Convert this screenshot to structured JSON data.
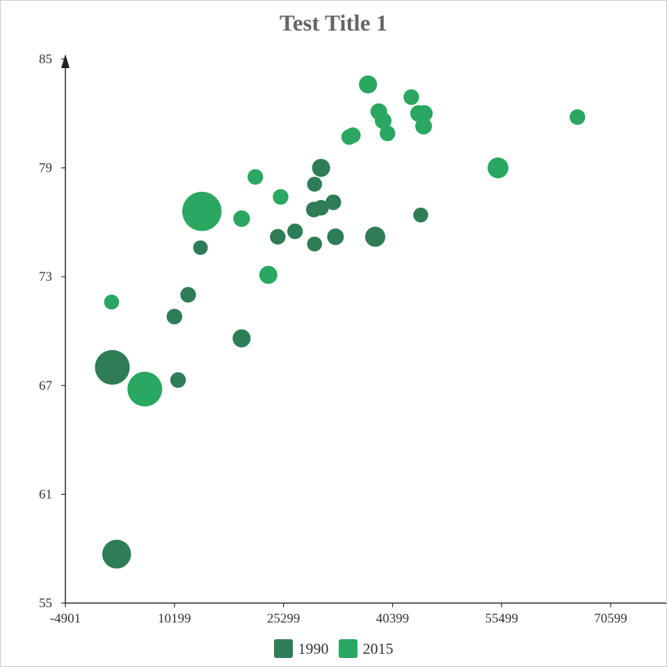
{
  "chart_data": {
    "type": "scatter",
    "title": "Test Title 1",
    "xlim": [
      -4901,
      76000
    ],
    "ylim": [
      55,
      85
    ],
    "x_ticks": [
      "-4901",
      "10199",
      "25299",
      "40399",
      "55499",
      "70599"
    ],
    "x_tick_values": [
      -4901,
      10199,
      25299,
      40399,
      55499,
      70599
    ],
    "y_ticks": [
      "55",
      "61",
      "67",
      "73",
      "79",
      "85"
    ],
    "y_tick_values": [
      55,
      61,
      67,
      73,
      79,
      85
    ],
    "legend_position": "bottom-center",
    "series": [
      {
        "name": "1990",
        "color": "#2e7d56",
        "points": [
          {
            "x": 1600,
            "y": 68.0,
            "size": 1.0
          },
          {
            "x": 2200,
            "y": 57.7,
            "size": 0.83
          },
          {
            "x": 10200,
            "y": 70.8,
            "size": 0.45
          },
          {
            "x": 10700,
            "y": 67.3,
            "size": 0.45
          },
          {
            "x": 12100,
            "y": 72.0,
            "size": 0.45
          },
          {
            "x": 13800,
            "y": 74.6,
            "size": 0.42
          },
          {
            "x": 19500,
            "y": 69.6,
            "size": 0.52
          },
          {
            "x": 24500,
            "y": 75.2,
            "size": 0.45
          },
          {
            "x": 26900,
            "y": 75.5,
            "size": 0.45
          },
          {
            "x": 29600,
            "y": 78.1,
            "size": 0.43
          },
          {
            "x": 29600,
            "y": 74.8,
            "size": 0.43
          },
          {
            "x": 29500,
            "y": 76.7,
            "size": 0.45
          },
          {
            "x": 30500,
            "y": 76.8,
            "size": 0.45
          },
          {
            "x": 30500,
            "y": 79.0,
            "size": 0.52
          },
          {
            "x": 32200,
            "y": 77.1,
            "size": 0.45
          },
          {
            "x": 32500,
            "y": 75.2,
            "size": 0.48
          },
          {
            "x": 38000,
            "y": 75.2,
            "size": 0.58
          },
          {
            "x": 44300,
            "y": 76.4,
            "size": 0.43
          }
        ]
      },
      {
        "name": "2015",
        "color": "#2aa760",
        "points": [
          {
            "x": 1500,
            "y": 71.6,
            "size": 0.43
          },
          {
            "x": 6100,
            "y": 66.8,
            "size": 1.0
          },
          {
            "x": 14000,
            "y": 76.6,
            "size": 1.13
          },
          {
            "x": 19500,
            "y": 76.2,
            "size": 0.48
          },
          {
            "x": 21400,
            "y": 78.5,
            "size": 0.45
          },
          {
            "x": 23200,
            "y": 73.1,
            "size": 0.52
          },
          {
            "x": 24900,
            "y": 77.4,
            "size": 0.45
          },
          {
            "x": 34400,
            "y": 80.7,
            "size": 0.45
          },
          {
            "x": 34900,
            "y": 80.8,
            "size": 0.45
          },
          {
            "x": 37000,
            "y": 83.6,
            "size": 0.52
          },
          {
            "x": 38500,
            "y": 82.1,
            "size": 0.48
          },
          {
            "x": 39100,
            "y": 81.6,
            "size": 0.48
          },
          {
            "x": 39700,
            "y": 80.9,
            "size": 0.45
          },
          {
            "x": 43000,
            "y": 82.9,
            "size": 0.45
          },
          {
            "x": 44000,
            "y": 82.0,
            "size": 0.48
          },
          {
            "x": 44800,
            "y": 82.0,
            "size": 0.48
          },
          {
            "x": 44700,
            "y": 81.3,
            "size": 0.48
          },
          {
            "x": 55000,
            "y": 79.0,
            "size": 0.6
          },
          {
            "x": 66000,
            "y": 81.8,
            "size": 0.45
          }
        ]
      }
    ]
  }
}
